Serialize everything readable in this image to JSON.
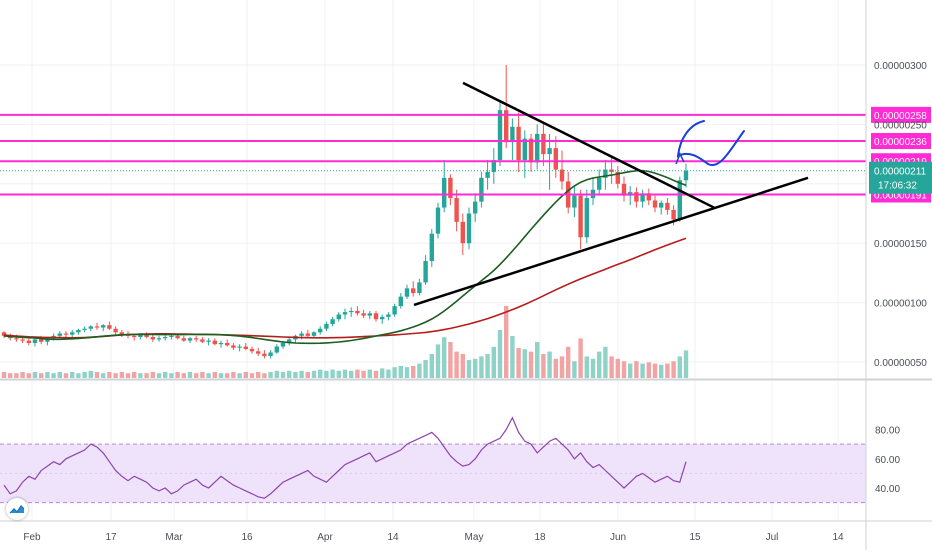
{
  "chart_data": {
    "type": "candlestick",
    "price_axis": {
      "ticks": [
        {
          "value": 3e-06,
          "label": "0.00000300"
        },
        {
          "value": 2.5e-06,
          "label": "0.00000250"
        },
        {
          "value": 1.5e-06,
          "label": "0.00000150"
        },
        {
          "value": 1e-06,
          "label": "0.00000100"
        },
        {
          "value": 5e-07,
          "label": "0.00000050"
        }
      ]
    },
    "levels": [
      {
        "value": 2.58e-06,
        "label": "0.00000258"
      },
      {
        "value": 2.36e-06,
        "label": "0.00000236"
      },
      {
        "value": 2.19e-06,
        "label": "0.00000219"
      },
      {
        "value": 1.91e-06,
        "label": "0.00000191"
      }
    ],
    "last_price": {
      "value": 2.11e-06,
      "label": "0.00000211",
      "countdown": "17:06:32"
    },
    "time_axis": {
      "labels": [
        "Feb",
        "17",
        "Mar",
        "16",
        "Apr",
        "14",
        "May",
        "18",
        "Jun",
        "15",
        "Jul",
        "14"
      ]
    },
    "rsi_axis": {
      "ticks": [
        {
          "value": 80,
          "label": "80.00"
        },
        {
          "value": 60,
          "label": "60.00"
        },
        {
          "value": 40,
          "label": "40.00"
        }
      ],
      "band": [
        30,
        70
      ]
    },
    "candles": [
      [
        0.75,
        0.76,
        0.7,
        0.72
      ],
      [
        0.72,
        0.74,
        0.68,
        0.7
      ],
      [
        0.7,
        0.73,
        0.67,
        0.69
      ],
      [
        0.69,
        0.72,
        0.66,
        0.68
      ],
      [
        0.68,
        0.71,
        0.64,
        0.66
      ],
      [
        0.66,
        0.7,
        0.63,
        0.69
      ],
      [
        0.69,
        0.72,
        0.65,
        0.67
      ],
      [
        0.67,
        0.71,
        0.64,
        0.7
      ],
      [
        0.7,
        0.74,
        0.68,
        0.72
      ],
      [
        0.72,
        0.76,
        0.7,
        0.74
      ],
      [
        0.74,
        0.76,
        0.71,
        0.73
      ],
      [
        0.73,
        0.77,
        0.71,
        0.75
      ],
      [
        0.75,
        0.78,
        0.73,
        0.77
      ],
      [
        0.77,
        0.8,
        0.75,
        0.78
      ],
      [
        0.78,
        0.81,
        0.76,
        0.8
      ],
      [
        0.8,
        0.83,
        0.77,
        0.79
      ],
      [
        0.79,
        0.82,
        0.76,
        0.81
      ],
      [
        0.81,
        0.84,
        0.77,
        0.78
      ],
      [
        0.78,
        0.8,
        0.73,
        0.75
      ],
      [
        0.75,
        0.77,
        0.71,
        0.73
      ],
      [
        0.73,
        0.76,
        0.7,
        0.72
      ],
      [
        0.72,
        0.74,
        0.68,
        0.71
      ],
      [
        0.71,
        0.74,
        0.69,
        0.73
      ],
      [
        0.73,
        0.75,
        0.7,
        0.71
      ],
      [
        0.71,
        0.73,
        0.67,
        0.69
      ],
      [
        0.69,
        0.72,
        0.67,
        0.7
      ],
      [
        0.7,
        0.73,
        0.68,
        0.71
      ],
      [
        0.71,
        0.74,
        0.69,
        0.72
      ],
      [
        0.72,
        0.74,
        0.69,
        0.7
      ],
      [
        0.7,
        0.72,
        0.67,
        0.68
      ],
      [
        0.68,
        0.71,
        0.66,
        0.7
      ],
      [
        0.7,
        0.72,
        0.67,
        0.69
      ],
      [
        0.69,
        0.71,
        0.66,
        0.67
      ],
      [
        0.67,
        0.7,
        0.64,
        0.68
      ],
      [
        0.68,
        0.7,
        0.64,
        0.65
      ],
      [
        0.65,
        0.68,
        0.62,
        0.66
      ],
      [
        0.66,
        0.69,
        0.63,
        0.64
      ],
      [
        0.64,
        0.66,
        0.6,
        0.62
      ],
      [
        0.62,
        0.65,
        0.59,
        0.63
      ],
      [
        0.63,
        0.66,
        0.6,
        0.61
      ],
      [
        0.61,
        0.63,
        0.57,
        0.59
      ],
      [
        0.59,
        0.62,
        0.55,
        0.57
      ],
      [
        0.57,
        0.6,
        0.53,
        0.55
      ],
      [
        0.55,
        0.6,
        0.53,
        0.58
      ],
      [
        0.58,
        0.65,
        0.57,
        0.63
      ],
      [
        0.63,
        0.68,
        0.61,
        0.66
      ],
      [
        0.66,
        0.71,
        0.64,
        0.69
      ],
      [
        0.69,
        0.73,
        0.66,
        0.72
      ],
      [
        0.72,
        0.76,
        0.69,
        0.74
      ],
      [
        0.74,
        0.77,
        0.7,
        0.72
      ],
      [
        0.72,
        0.76,
        0.7,
        0.75
      ],
      [
        0.75,
        0.8,
        0.73,
        0.78
      ],
      [
        0.78,
        0.84,
        0.76,
        0.82
      ],
      [
        0.82,
        0.88,
        0.8,
        0.86
      ],
      [
        0.86,
        0.92,
        0.84,
        0.9
      ],
      [
        0.9,
        0.95,
        0.86,
        0.92
      ],
      [
        0.92,
        0.96,
        0.88,
        0.93
      ],
      [
        0.93,
        0.97,
        0.89,
        0.91
      ],
      [
        0.91,
        0.94,
        0.87,
        0.89
      ],
      [
        0.89,
        0.93,
        0.86,
        0.91
      ],
      [
        0.91,
        0.93,
        0.84,
        0.86
      ],
      [
        0.86,
        0.9,
        0.82,
        0.88
      ],
      [
        0.88,
        0.92,
        0.85,
        0.9
      ],
      [
        0.9,
        0.99,
        0.88,
        0.97
      ],
      [
        0.97,
        1.08,
        0.95,
        1.05
      ],
      [
        1.05,
        1.15,
        1.03,
        1.12
      ],
      [
        1.12,
        1.18,
        1.05,
        1.08
      ],
      [
        1.08,
        1.2,
        1.06,
        1.17
      ],
      [
        1.17,
        1.4,
        1.15,
        1.35
      ],
      [
        1.35,
        1.62,
        1.3,
        1.58
      ],
      [
        1.58,
        1.84,
        1.54,
        1.8
      ],
      [
        1.8,
        2.2,
        1.76,
        2.05
      ],
      [
        2.05,
        2.08,
        1.82,
        1.88
      ],
      [
        1.88,
        1.95,
        1.6,
        1.68
      ],
      [
        1.68,
        1.75,
        1.4,
        1.5
      ],
      [
        1.5,
        1.8,
        1.45,
        1.75
      ],
      [
        1.75,
        1.92,
        1.68,
        1.85
      ],
      [
        1.85,
        2.1,
        1.8,
        2.05
      ],
      [
        2.05,
        2.2,
        1.95,
        2.1
      ],
      [
        2.1,
        2.3,
        2.0,
        2.2
      ],
      [
        2.2,
        2.7,
        2.15,
        2.62
      ],
      [
        2.62,
        3.0,
        2.3,
        2.35
      ],
      [
        2.35,
        2.55,
        2.2,
        2.48
      ],
      [
        2.48,
        2.6,
        2.1,
        2.2
      ],
      [
        2.2,
        2.45,
        2.05,
        2.38
      ],
      [
        2.38,
        2.42,
        2.1,
        2.18
      ],
      [
        2.18,
        2.5,
        2.12,
        2.42
      ],
      [
        2.42,
        2.52,
        2.15,
        2.25
      ],
      [
        2.25,
        2.42,
        1.95,
        2.3
      ],
      [
        2.3,
        2.4,
        2.05,
        2.12
      ],
      [
        2.12,
        2.28,
        1.95,
        2.02
      ],
      [
        2.02,
        2.1,
        1.75,
        1.8
      ],
      [
        1.8,
        1.98,
        1.72,
        1.9
      ],
      [
        1.9,
        1.95,
        1.45,
        1.55
      ],
      [
        1.55,
        1.95,
        1.5,
        1.88
      ],
      [
        1.88,
        2.05,
        1.82,
        1.95
      ],
      [
        1.95,
        2.12,
        1.9,
        2.05
      ],
      [
        2.05,
        2.2,
        1.95,
        2.12
      ],
      [
        2.12,
        2.22,
        2.0,
        2.1
      ],
      [
        2.1,
        2.15,
        1.96,
        2.0
      ],
      [
        2.0,
        2.06,
        1.85,
        1.9
      ],
      [
        1.9,
        1.98,
        1.82,
        1.93
      ],
      [
        1.93,
        1.97,
        1.8,
        1.85
      ],
      [
        1.85,
        1.95,
        1.8,
        1.92
      ],
      [
        1.92,
        1.96,
        1.82,
        1.86
      ],
      [
        1.86,
        1.9,
        1.76,
        1.8
      ],
      [
        1.8,
        1.86,
        1.74,
        1.84
      ],
      [
        1.84,
        1.88,
        1.74,
        1.78
      ],
      [
        1.78,
        1.82,
        1.65,
        1.7
      ],
      [
        1.7,
        2.06,
        1.68,
        2.03
      ],
      [
        2.03,
        2.17,
        1.97,
        2.11
      ]
    ],
    "volume": [
      0.05,
      0.04,
      0.04,
      0.05,
      0.04,
      0.05,
      0.04,
      0.05,
      0.04,
      0.05,
      0.04,
      0.05,
      0.04,
      0.05,
      0.06,
      0.05,
      0.04,
      0.05,
      0.04,
      0.05,
      0.04,
      0.05,
      0.04,
      0.04,
      0.05,
      0.04,
      0.05,
      0.04,
      0.05,
      0.04,
      0.05,
      0.04,
      0.05,
      0.04,
      0.05,
      0.04,
      0.04,
      0.05,
      0.04,
      0.05,
      0.04,
      0.05,
      0.04,
      0.05,
      0.06,
      0.05,
      0.06,
      0.05,
      0.06,
      0.05,
      0.06,
      0.07,
      0.06,
      0.07,
      0.06,
      0.07,
      0.06,
      0.07,
      0.06,
      0.07,
      0.06,
      0.08,
      0.07,
      0.09,
      0.1,
      0.09,
      0.1,
      0.12,
      0.15,
      0.2,
      0.28,
      0.34,
      0.3,
      0.22,
      0.2,
      0.15,
      0.16,
      0.18,
      0.2,
      0.26,
      0.4,
      0.6,
      0.35,
      0.25,
      0.24,
      0.22,
      0.3,
      0.2,
      0.22,
      0.16,
      0.18,
      0.26,
      0.14,
      0.33,
      0.18,
      0.16,
      0.22,
      0.26,
      0.18,
      0.16,
      0.14,
      0.12,
      0.14,
      0.12,
      0.13,
      0.12,
      0.11,
      0.12,
      0.14,
      0.18,
      0.23
    ],
    "rsi": [
      42,
      36,
      38,
      44,
      48,
      46,
      52,
      55,
      58,
      56,
      60,
      62,
      64,
      66,
      70,
      68,
      64,
      58,
      52,
      48,
      45,
      48,
      46,
      44,
      40,
      38,
      40,
      36,
      38,
      42,
      44,
      46,
      42,
      40,
      44,
      48,
      45,
      42,
      40,
      38,
      36,
      34,
      33,
      36,
      40,
      44,
      46,
      48,
      50,
      52,
      48,
      46,
      44,
      48,
      52,
      56,
      58,
      60,
      62,
      64,
      58,
      60,
      62,
      64,
      66,
      70,
      72,
      74,
      76,
      78,
      74,
      68,
      62,
      58,
      55,
      56,
      60,
      66,
      70,
      72,
      74,
      80,
      88,
      78,
      72,
      70,
      64,
      68,
      72,
      74,
      70,
      66,
      60,
      64,
      58,
      54,
      56,
      52,
      48,
      44,
      40,
      44,
      48,
      50,
      47,
      44,
      46,
      48,
      45,
      44,
      58
    ]
  }
}
